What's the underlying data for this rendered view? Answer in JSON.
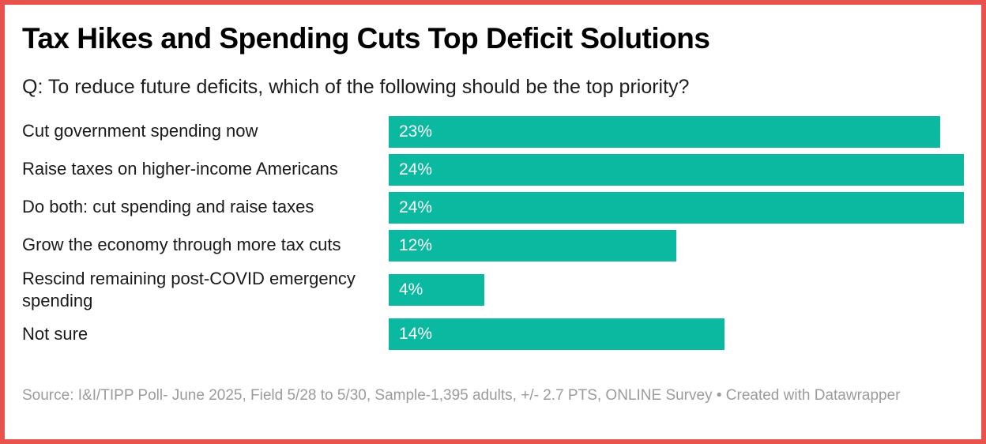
{
  "frame": {
    "border_color": "#e9534e",
    "background": "#ffffff"
  },
  "header": {
    "title": "Tax Hikes and Spending Cuts Top Deficit Solutions",
    "subtitle": "Q: To reduce future deficits, which of the following should be the top priority?"
  },
  "chart_data": {
    "type": "bar",
    "orientation": "horizontal",
    "title": "Tax Hikes and Spending Cuts Top Deficit Solutions",
    "subtitle": "Q: To reduce future deficits, which of the following should be the top priority?",
    "categories": [
      "Cut government spending now",
      "Raise taxes on higher-income Americans",
      "Do both: cut spending and raise taxes",
      "Grow the economy through more tax cuts",
      "Rescind remaining post-COVID emergency spending",
      "Not sure"
    ],
    "values": [
      23,
      24,
      24,
      12,
      4,
      14
    ],
    "value_labels": [
      "23%",
      "24%",
      "24%",
      "12%",
      "4%",
      "14%"
    ],
    "xlabel": "",
    "ylabel": "",
    "xlim": [
      0,
      24
    ],
    "grid": false,
    "legend": false,
    "bar_color": "#0ab9a0",
    "value_label_color": "#ffffff",
    "value_label_position": "inside-left"
  },
  "footer": {
    "source": "Source: I&I/TIPP Poll- June 2025, Field 5/28 to 5/30, Sample-1,395 adults, +/- 2.7 PTS, ONLINE Survey • Created with Datawrapper"
  }
}
